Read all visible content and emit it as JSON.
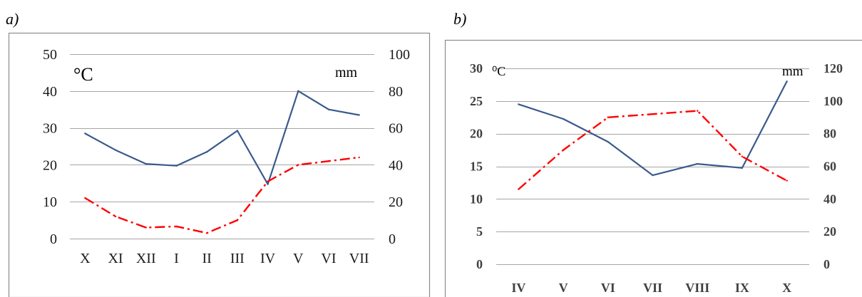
{
  "panels": {
    "a": {
      "letter": "a)"
    },
    "b": {
      "letter": "b)"
    }
  },
  "chart_data": [
    {
      "type": "line",
      "panel": "a)",
      "categories": [
        "X",
        "XI",
        "XII",
        "I",
        "II",
        "III",
        "IV",
        "V",
        "VI",
        "VII"
      ],
      "left_unit": "°C",
      "right_unit": "mm",
      "left_ylim": [
        0,
        50
      ],
      "right_ylim": [
        0,
        100
      ],
      "left_ticks": [
        0,
        10,
        20,
        30,
        40,
        50
      ],
      "right_ticks": [
        0,
        20,
        40,
        60,
        80,
        100
      ],
      "grid": true,
      "series": [
        {
          "axis": "right",
          "color": "#3a5a8c",
          "style": "solid",
          "values": [
            57,
            48,
            40.5,
            39.5,
            47,
            58.5,
            29.5,
            80,
            70,
            67
          ]
        },
        {
          "axis": "left",
          "color": "#ff0000",
          "style": "dash-dot",
          "values": [
            11,
            6,
            3,
            3.3,
            1.5,
            5,
            15.5,
            20,
            21,
            22
          ]
        }
      ]
    },
    {
      "type": "line",
      "panel": "b)",
      "categories": [
        "IV",
        "V",
        "VI",
        "VII",
        "VIII",
        "IX",
        "X"
      ],
      "left_unit": "⁰C",
      "right_unit": "mm",
      "left_ylim": [
        0,
        30
      ],
      "right_ylim": [
        0,
        120
      ],
      "left_ticks": [
        0,
        5,
        10,
        15,
        20,
        25,
        30
      ],
      "right_ticks": [
        0,
        20,
        40,
        60,
        80,
        100,
        120
      ],
      "grid": true,
      "series": [
        {
          "axis": "right",
          "color": "#3a5a8c",
          "style": "solid",
          "values": [
            98,
            89,
            75,
            54.5,
            61.5,
            59,
            112
          ]
        },
        {
          "axis": "left",
          "color": "#ff0000",
          "style": "dash-dot",
          "values": [
            11.5,
            17.5,
            22.5,
            23,
            23.5,
            16.5,
            12.8
          ]
        }
      ]
    }
  ]
}
